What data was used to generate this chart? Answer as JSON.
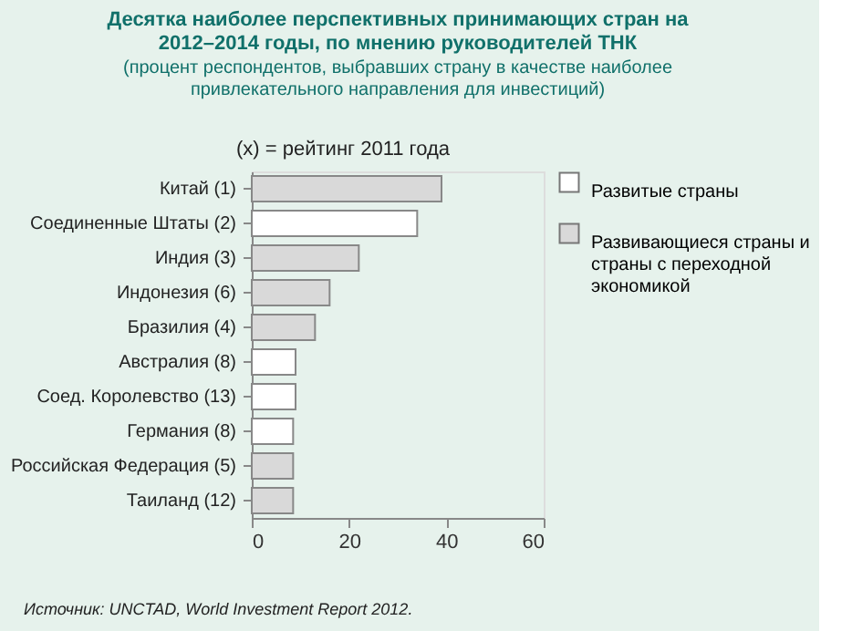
{
  "chart_data": {
    "type": "bar",
    "orientation": "horizontal",
    "title": "Десятка наиболее перспективных принимающих стран на 2012–2014 годы, по мнению руководителей ТНК",
    "subtitle": "(процент респондентов, выбравших страну в качестве наиболее привлекательного направления для инвестиций)",
    "categories": [
      "Китай (1)",
      "Соединенные Штаты (2)",
      "Индия (3)",
      "Индонезия (6)",
      "Бразилия (4)",
      "Австралия (8)",
      "Соед. Королевство (13)",
      "Германия (8)",
      "Российская Федерация (5)",
      "Таиланд (12)"
    ],
    "series": [
      {
        "name": "Развитые страны",
        "color": "#ffffff",
        "values": [
          null,
          34,
          null,
          null,
          null,
          9,
          9,
          8.5,
          null,
          null
        ]
      },
      {
        "name": "Развивающиеся страны и страны с переходной экономикой",
        "color": "#d9d9d9",
        "values": [
          39,
          null,
          22,
          16,
          13,
          null,
          null,
          null,
          8.5,
          8.5
        ]
      }
    ],
    "xlim": [
      0,
      60
    ],
    "xticks": [
      0,
      20,
      40,
      60
    ],
    "grid": false,
    "legend": "top right",
    "annotations": [
      "(x) = рейтинг 2011 года",
      "Источник: UNCTAD, World Investment Report 2012."
    ]
  }
}
